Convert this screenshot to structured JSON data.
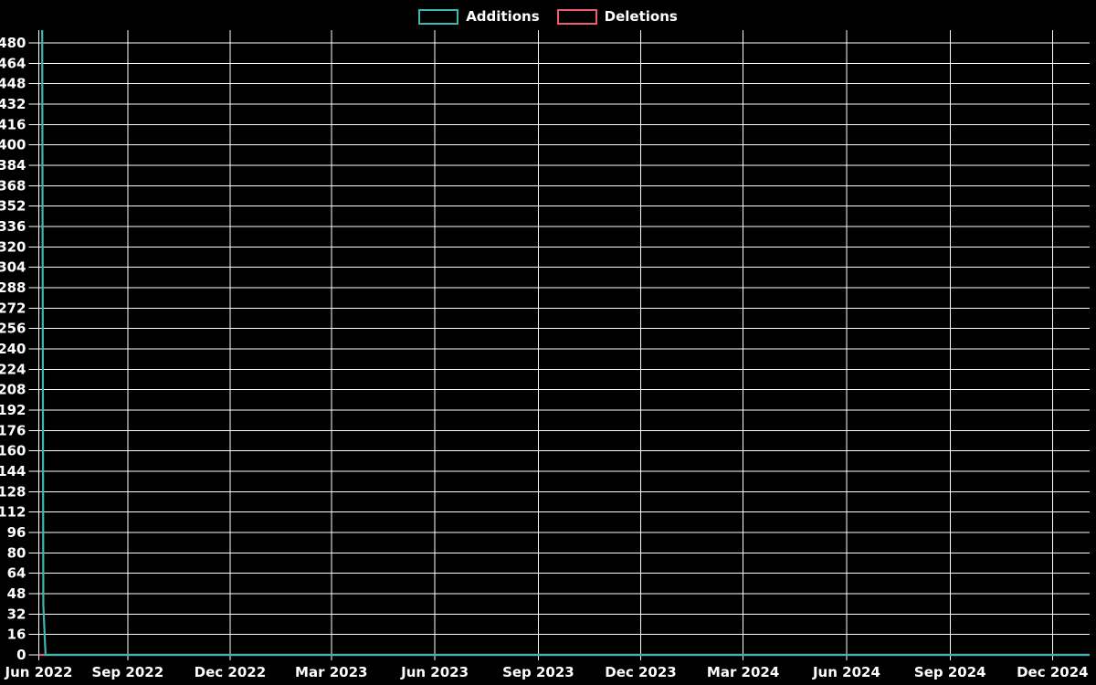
{
  "chart_data": {
    "type": "line",
    "legend": {
      "position": "top-center",
      "entries": [
        {
          "label": "Additions",
          "color": "#40b6b0"
        },
        {
          "label": "Deletions",
          "color": "#ee5a6e"
        }
      ]
    },
    "background": "#000000",
    "gridline_color": "#ffffff",
    "text_color": "#ffffff",
    "grid": "both",
    "x_domain": [
      "2022-06-14",
      "2025-01-03"
    ],
    "x_ticks": [
      {
        "date": "2022-06-14",
        "label": "Jun 2022"
      },
      {
        "date": "2022-09-01",
        "label": "Sep 2022"
      },
      {
        "date": "2022-12-01",
        "label": "Dec 2022"
      },
      {
        "date": "2023-03-01",
        "label": "Mar 2023"
      },
      {
        "date": "2023-06-01",
        "label": "Jun 2023"
      },
      {
        "date": "2023-09-01",
        "label": "Sep 2023"
      },
      {
        "date": "2023-12-01",
        "label": "Dec 2023"
      },
      {
        "date": "2024-03-01",
        "label": "Mar 2024"
      },
      {
        "date": "2024-06-01",
        "label": "Jun 2024"
      },
      {
        "date": "2024-09-01",
        "label": "Sep 2024"
      },
      {
        "date": "2024-12-01",
        "label": "Dec 2024"
      }
    ],
    "ylim": [
      0,
      490
    ],
    "y_tick_step": 16,
    "y_ticks": [
      0,
      16,
      32,
      48,
      64,
      80,
      96,
      112,
      128,
      144,
      160,
      176,
      192,
      208,
      224,
      240,
      256,
      272,
      288,
      304,
      320,
      336,
      352,
      368,
      384,
      400,
      416,
      432,
      448,
      464,
      480
    ],
    "series": [
      {
        "name": "Additions",
        "color": "#40b6b0",
        "points": [
          [
            "2022-06-17",
            490
          ],
          [
            "2022-06-18",
            39
          ],
          [
            "2022-06-20",
            0
          ],
          [
            "2025-01-03",
            0
          ]
        ]
      },
      {
        "name": "Deletions",
        "color": "#ee5a6e",
        "points": [
          [
            "2022-06-14",
            0
          ],
          [
            "2025-01-03",
            0
          ]
        ]
      }
    ]
  }
}
